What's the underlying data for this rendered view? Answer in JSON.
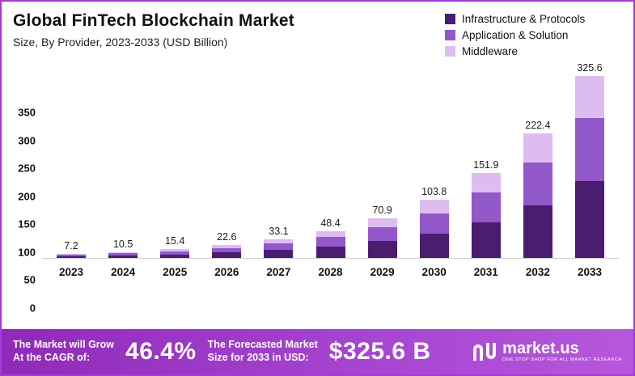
{
  "header": {
    "title": "Global FinTech Blockchain Market",
    "subtitle": "Size, By Provider, 2023-2033 (USD Billion)"
  },
  "legend": [
    {
      "label": "Infrastructure & Protocols",
      "color": "#4a1d70"
    },
    {
      "label": "Application & Solution",
      "color": "#9257c9"
    },
    {
      "label": "Middleware",
      "color": "#ddbdf1"
    }
  ],
  "chart_data": {
    "type": "bar",
    "stacked": true,
    "title": "Global FinTech Blockchain Market",
    "subtitle": "Size, By Provider, 2023-2033 (USD Billion)",
    "xlabel": "",
    "ylabel": "USD Billion",
    "ylim": [
      0,
      350
    ],
    "yticks": [
      350,
      300,
      250,
      200,
      150,
      100,
      50,
      0
    ],
    "grid": false,
    "legend_position": "top-right",
    "categories": [
      "2023",
      "2024",
      "2025",
      "2026",
      "2027",
      "2028",
      "2029",
      "2030",
      "2031",
      "2032",
      "2033"
    ],
    "totals": [
      7.2,
      10.5,
      15.4,
      22.6,
      33.1,
      48.4,
      70.9,
      103.8,
      151.9,
      222.4,
      325.6
    ],
    "series": [
      {
        "name": "Infrastructure & Protocols",
        "color": "#4a1d70",
        "values": [
          3.0,
          4.4,
          6.5,
          9.5,
          13.9,
          20.3,
          29.8,
          43.6,
          63.8,
          93.4,
          136.8
        ]
      },
      {
        "name": "Application & Solution",
        "color": "#9257c9",
        "values": [
          2.5,
          3.7,
          5.4,
          7.9,
          11.6,
          16.9,
          24.8,
          36.3,
          53.2,
          77.8,
          113.9
        ]
      },
      {
        "name": "Middleware",
        "color": "#ddbdf1",
        "values": [
          1.7,
          2.4,
          3.5,
          5.2,
          7.6,
          11.2,
          16.3,
          23.9,
          34.9,
          51.2,
          74.9
        ]
      }
    ]
  },
  "banner": {
    "cagr_label": "The Market will Grow\nAt the CAGR of:",
    "cagr_value": "46.4%",
    "forecast_label": "The Forecasted Market\nSize for 2033 in USD:",
    "forecast_value": "$325.6 B",
    "brand": "market.us",
    "tagline": "ONE STOP SHOP FOR ALL MARKET RESEARCH"
  }
}
